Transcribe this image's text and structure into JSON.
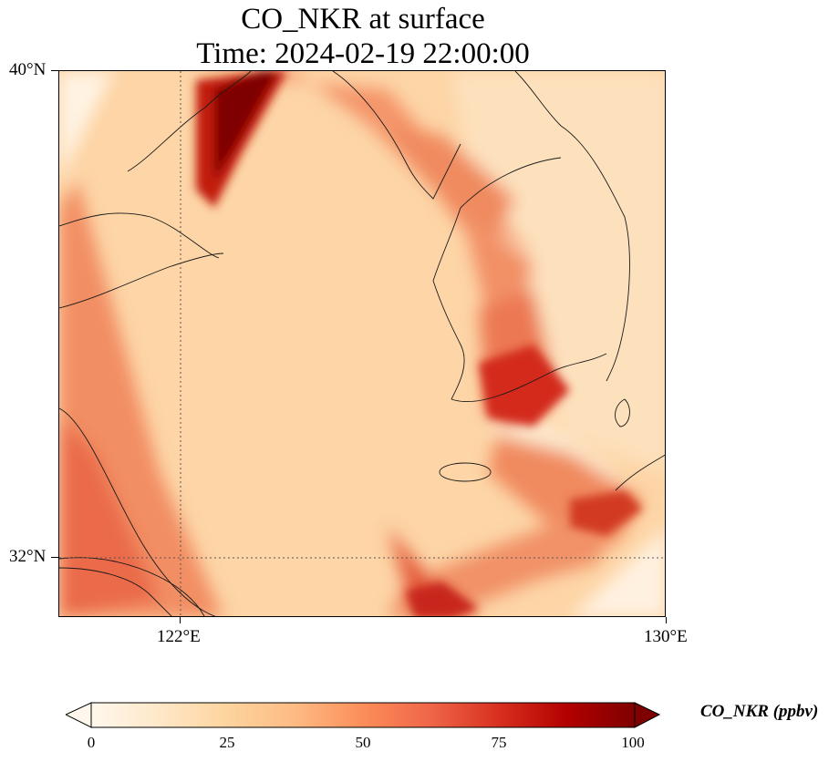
{
  "title": {
    "line1": "CO_NKR at surface",
    "line2": "Time: 2024-02-19 22:00:00"
  },
  "axes": {
    "lat_ticks": [
      "40°N",
      "32°N"
    ],
    "lon_ticks": [
      "122°E",
      "130°E"
    ],
    "lat_range": [
      31,
      40
    ],
    "lon_range": [
      120,
      130
    ],
    "gridlines": "dotted at 122°E and 32°N"
  },
  "colorbar": {
    "label": "CO_NKR (ppbv)",
    "ticks": [
      "0",
      "25",
      "50",
      "75",
      "100"
    ],
    "range": [
      0,
      100
    ],
    "colormap": "OrRd",
    "extend": "both",
    "colors": [
      "#fff7ec",
      "#fee8c8",
      "#fdd49e",
      "#fdbb84",
      "#fc8d59",
      "#ef6548",
      "#d7301f",
      "#b30000",
      "#7f0000"
    ]
  },
  "chart_data": {
    "type": "heatmap",
    "variable": "CO_NKR",
    "units": "ppbv",
    "features": [
      {
        "name": "plume core over Bohai",
        "lon": 121.3,
        "lat": 39.3,
        "value": 100
      },
      {
        "name": "band along Chinese coast",
        "lon": 120.5,
        "lat": 35.0,
        "value": 60
      },
      {
        "name": "band along west coast of Korea",
        "lon": 126.2,
        "lat": 36.5,
        "value": 65
      },
      {
        "name": "southern tip of Korea",
        "lon": 127.0,
        "lat": 34.3,
        "value": 80
      },
      {
        "name": "band south of Jeju",
        "lon": 128.6,
        "lat": 32.6,
        "value": 75
      },
      {
        "name": "East China Sea south",
        "lon": 126.0,
        "lat": 31.2,
        "value": 80
      },
      {
        "name": "central Yellow Sea",
        "lon": 124.0,
        "lat": 35.5,
        "value": 35
      }
    ]
  }
}
